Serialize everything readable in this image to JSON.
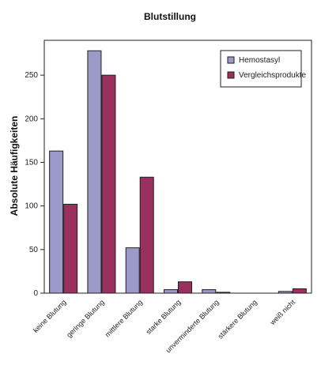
{
  "chart_data": {
    "type": "bar",
    "title": "Blutstillung",
    "xlabel": "",
    "ylabel": "Absolute Häufigkeiten",
    "categories": [
      "keine Blutung",
      "geringe Blutung",
      "mittlere Blutung",
      "starke Blutung",
      "unverminderte Blutung",
      "stärkere Blutung",
      "weiß nicht"
    ],
    "series": [
      {
        "name": "Hemostasyl",
        "color": "#9c9ac9",
        "values": [
          163,
          278,
          52,
          4,
          4,
          0,
          2
        ]
      },
      {
        "name": "Vergleichsprodukte",
        "color": "#99305e",
        "values": [
          102,
          250,
          133,
          13,
          1,
          0,
          5
        ]
      }
    ],
    "yticks": [
      0,
      50,
      100,
      150,
      200,
      250
    ],
    "ylim": [
      0,
      290
    ],
    "grid": false,
    "legend_position": "top-right"
  }
}
